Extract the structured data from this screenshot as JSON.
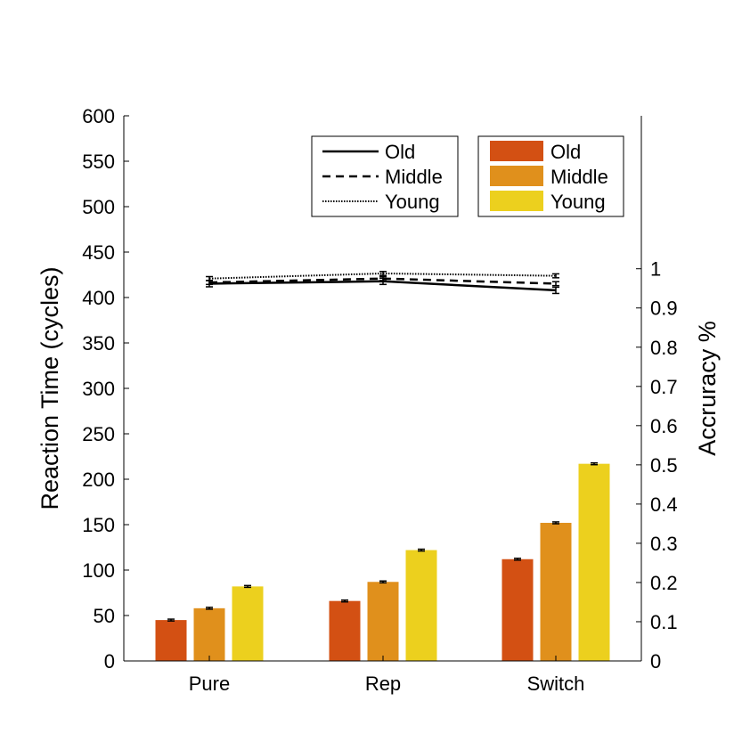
{
  "chart_data": {
    "type": "bar",
    "categories": [
      "Pure",
      "Rep",
      "Switch"
    ],
    "ylabel": "Reaction Time (cycles)",
    "y2label": "Accruracy %",
    "ylim": [
      0,
      600
    ],
    "y2lim": [
      0,
      1.39
    ],
    "yticks": [
      "0",
      "50",
      "100",
      "150",
      "200",
      "250",
      "300",
      "350",
      "400",
      "450",
      "500",
      "550",
      "600"
    ],
    "y2ticks": [
      "0",
      "0.1",
      "0.2",
      "0.3",
      "0.4",
      "0.5",
      "0.6",
      "0.7",
      "0.8",
      "0.9",
      "1"
    ],
    "grid": false,
    "bar_series": [
      {
        "name": "Old",
        "color": "#d35013",
        "values": [
          45,
          66,
          112
        ],
        "errors": [
          1,
          1,
          1
        ]
      },
      {
        "name": "Middle",
        "color": "#e0901c",
        "values": [
          58,
          87,
          152
        ],
        "errors": [
          1,
          1,
          1
        ]
      },
      {
        "name": "Young",
        "color": "#ecd01e",
        "values": [
          82,
          122,
          217
        ],
        "errors": [
          1,
          1,
          1
        ]
      }
    ],
    "line_series": [
      {
        "name": "Old",
        "style": "solid",
        "values": [
          0.962,
          0.968,
          0.945
        ],
        "errors": [
          0.008,
          0.008,
          0.008
        ]
      },
      {
        "name": "Middle",
        "style": "dashed",
        "values": [
          0.965,
          0.975,
          0.962
        ],
        "errors": [
          0.005,
          0.005,
          0.005
        ]
      },
      {
        "name": "Young",
        "style": "dotted",
        "values": [
          0.975,
          0.988,
          0.982
        ],
        "errors": [
          0.005,
          0.005,
          0.005
        ]
      }
    ],
    "legends": {
      "lines": {
        "placement": "top-center",
        "entries": [
          "Old",
          "Middle",
          "Young"
        ]
      },
      "bars": {
        "placement": "top-right",
        "entries": [
          "Old",
          "Middle",
          "Young"
        ]
      }
    }
  }
}
